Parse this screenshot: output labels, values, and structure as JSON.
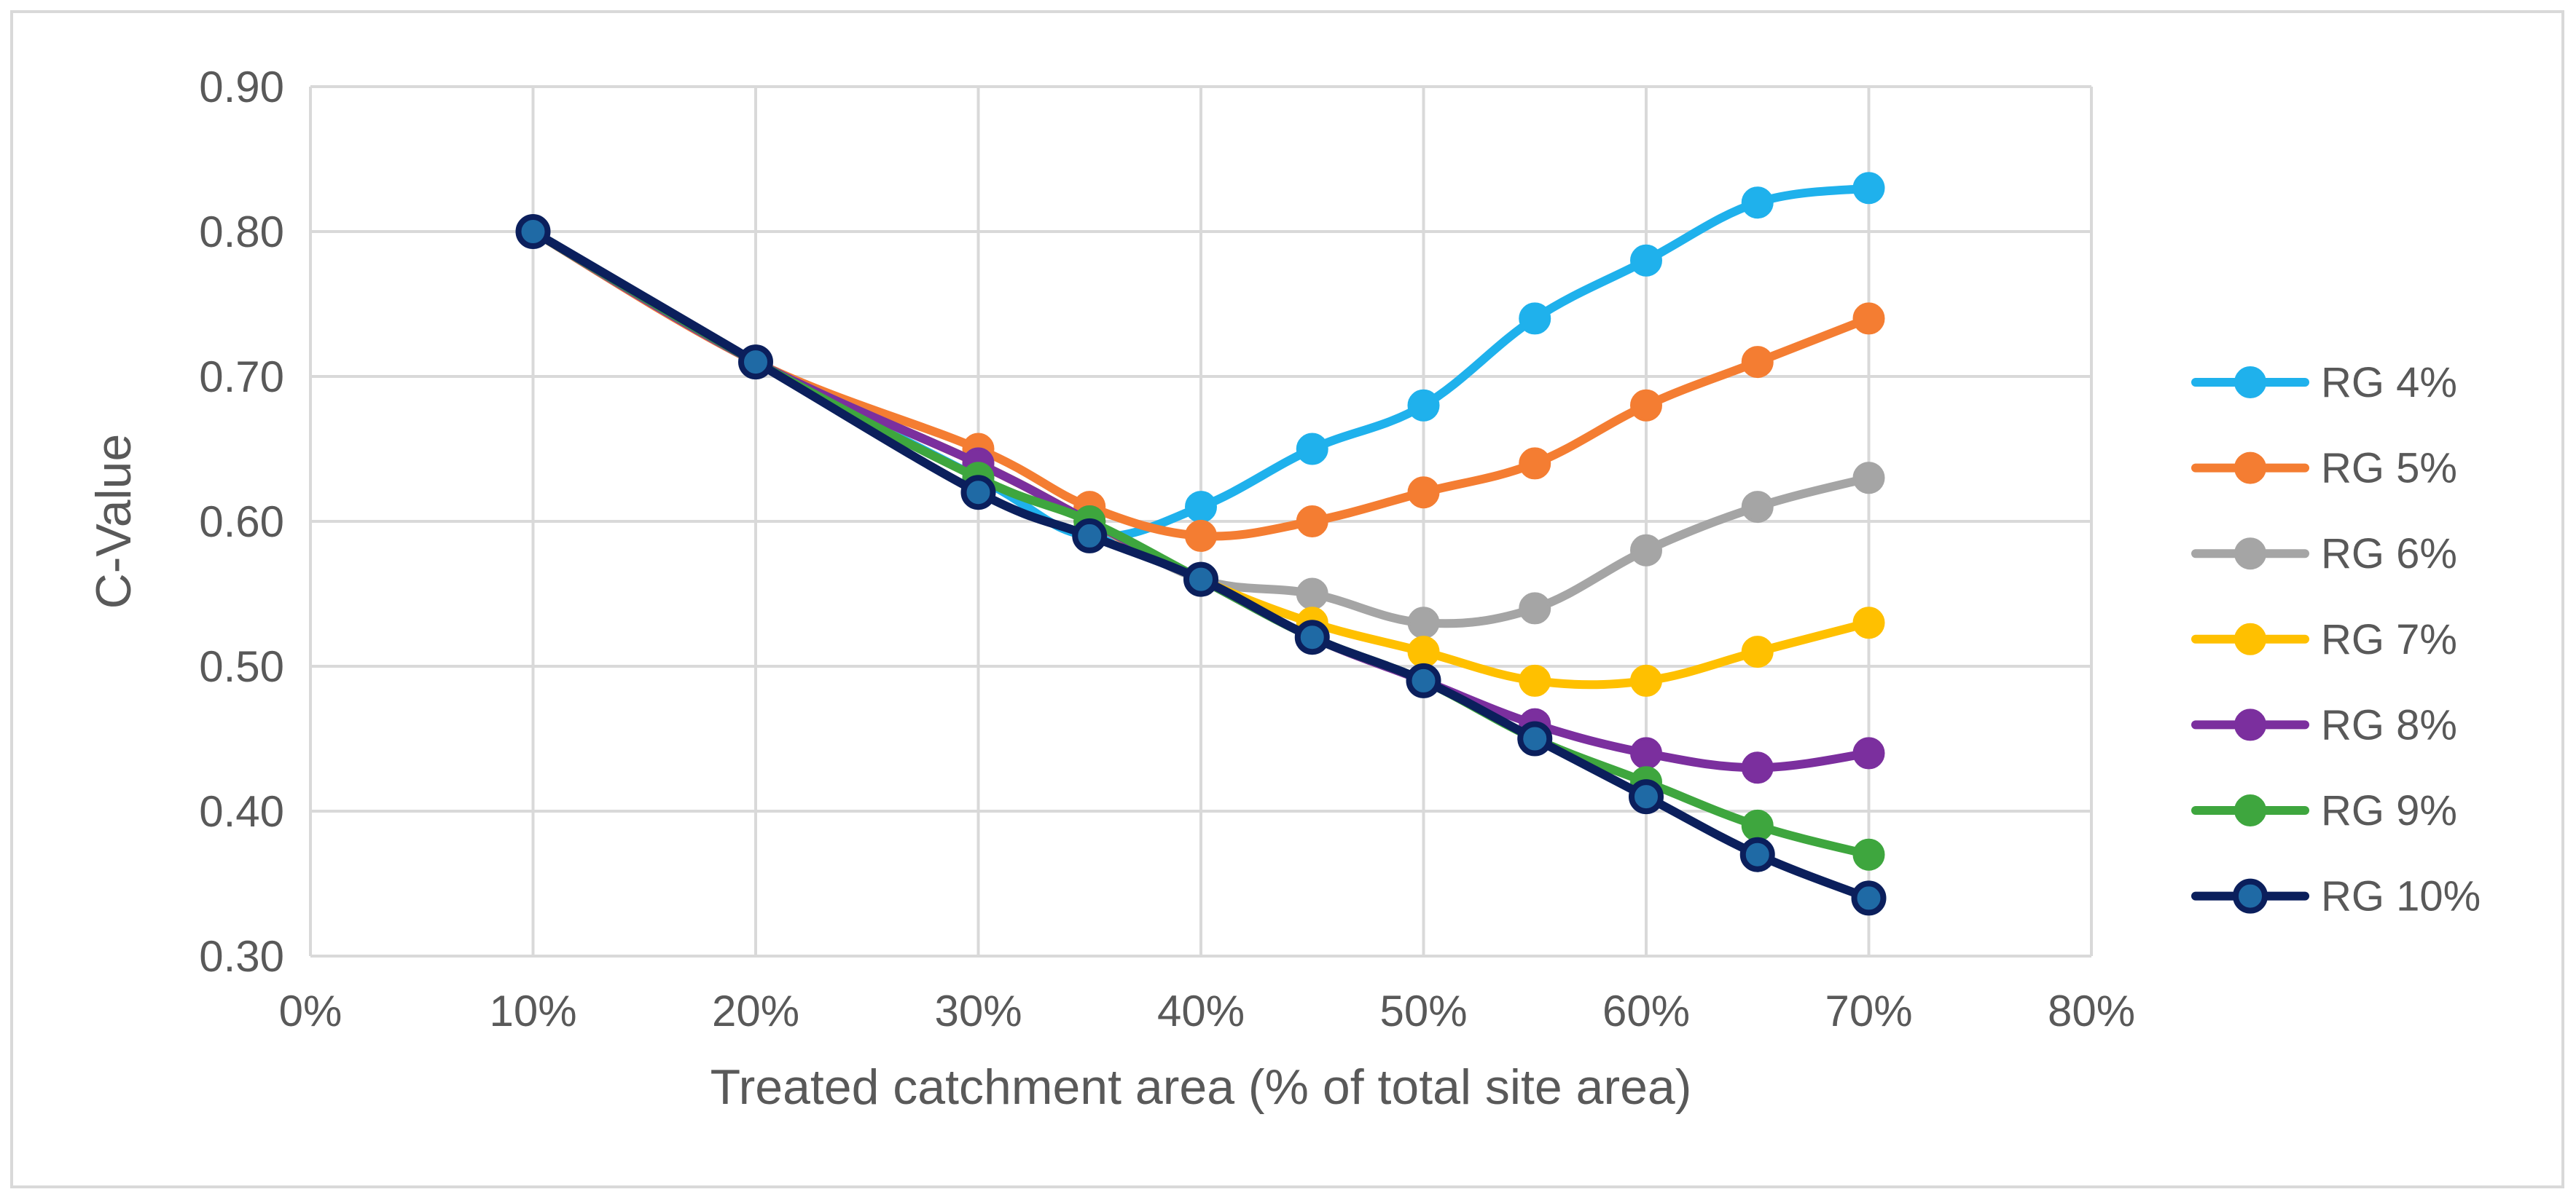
{
  "chart_data": {
    "type": "line",
    "title": "",
    "xlabel": "Treated catchment area (% of total site area)",
    "ylabel": "C-Value",
    "xlim": [
      0,
      80
    ],
    "ylim": [
      0.3,
      0.9
    ],
    "x_ticks": [
      "0%",
      "10%",
      "20%",
      "30%",
      "40%",
      "50%",
      "60%",
      "70%",
      "80%"
    ],
    "x_tick_values": [
      0,
      10,
      20,
      30,
      40,
      50,
      60,
      70,
      80
    ],
    "y_ticks": [
      "0.90",
      "0.80",
      "0.70",
      "0.60",
      "0.50",
      "0.40",
      "0.30"
    ],
    "y_tick_values": [
      0.9,
      0.8,
      0.7,
      0.6,
      0.5,
      0.4,
      0.3
    ],
    "grid": true,
    "legend_position": "right",
    "x": [
      10,
      20,
      30,
      35,
      40,
      45,
      50,
      55,
      60,
      65,
      70
    ],
    "series": [
      {
        "name": "RG 4%",
        "color": "#1fb1ec",
        "values": [
          0.8,
          0.71,
          0.63,
          0.59,
          0.61,
          0.65,
          0.68,
          0.74,
          0.78,
          0.82,
          0.83
        ]
      },
      {
        "name": "RG 5%",
        "color": "#f47d32",
        "values": [
          0.8,
          0.71,
          0.65,
          0.61,
          0.59,
          0.6,
          0.62,
          0.64,
          0.68,
          0.71,
          0.74
        ]
      },
      {
        "name": "RG 6%",
        "color": "#a5a5a5",
        "values": [
          0.8,
          0.71,
          0.64,
          0.6,
          0.56,
          0.55,
          0.53,
          0.54,
          0.58,
          0.61,
          0.63
        ]
      },
      {
        "name": "RG 7%",
        "color": "#ffc000",
        "values": [
          0.8,
          0.71,
          0.64,
          0.6,
          0.56,
          0.53,
          0.51,
          0.49,
          0.49,
          0.51,
          0.53
        ]
      },
      {
        "name": "RG 8%",
        "color": "#7b2f9e",
        "values": [
          0.8,
          0.71,
          0.64,
          0.6,
          0.56,
          0.52,
          0.49,
          0.46,
          0.44,
          0.43,
          0.44
        ]
      },
      {
        "name": "RG 9%",
        "color": "#3ea63e",
        "values": [
          0.8,
          0.71,
          0.63,
          0.6,
          0.56,
          0.52,
          0.49,
          0.45,
          0.42,
          0.39,
          0.37
        ]
      },
      {
        "name": "RG 10%",
        "color": "#0b1f5c",
        "marker_fill": "#1f6aa5",
        "values": [
          0.8,
          0.71,
          0.62,
          0.59,
          0.56,
          0.52,
          0.49,
          0.45,
          0.41,
          0.37,
          0.34
        ]
      }
    ]
  }
}
